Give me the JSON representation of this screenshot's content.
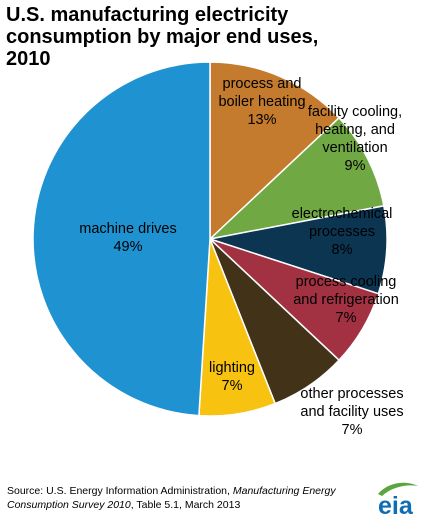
{
  "chart_data": {
    "type": "pie",
    "title_lines": [
      "U.S. manufacturing electricity",
      "consumption by major end uses,",
      "2010"
    ],
    "start_angle_deg": 0,
    "direction": "clockwise",
    "slices": [
      {
        "label_lines": [
          "process and",
          "boiler heating"
        ],
        "pct_text": "13%",
        "value": 13,
        "color": "#c47b2d"
      },
      {
        "label_lines": [
          "facility cooling,",
          "heating, and",
          "ventilation"
        ],
        "pct_text": "9%",
        "value": 9,
        "color": "#70a844"
      },
      {
        "label_lines": [
          "electrochemical",
          "processes"
        ],
        "pct_text": "8%",
        "value": 8,
        "color": "#0b3551"
      },
      {
        "label_lines": [
          "process cooling",
          "and refrigeration"
        ],
        "pct_text": "7%",
        "value": 7,
        "color": "#a23142"
      },
      {
        "label_lines": [
          "other processes",
          "and facility uses"
        ],
        "pct_text": "7%",
        "value": 7,
        "color": "#423218"
      },
      {
        "label_lines": [
          "lighting"
        ],
        "pct_text": "7%",
        "value": 7,
        "color": "#f8c211"
      },
      {
        "label_lines": [
          "machine drives"
        ],
        "pct_text": "49%",
        "value": 49,
        "color": "#1f93d2"
      }
    ]
  },
  "source": {
    "prefix": "Source: U.S. Energy Information Administration, ",
    "italic": "Manufacturing Energy Consumption Survey 2010",
    "suffix": ", Table 5.1, March 2013"
  },
  "logo": {
    "text": "eia",
    "color": "#0f6db3",
    "swoosh_color": "#5aa53d"
  }
}
